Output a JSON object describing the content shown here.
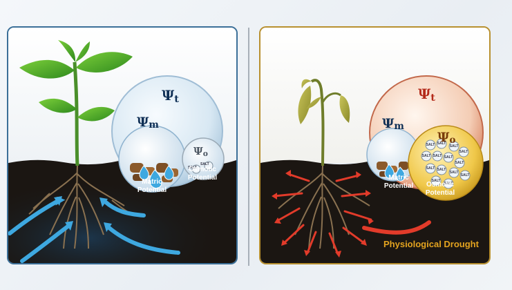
{
  "healthy": {
    "psi_t": {
      "symbol": "Ψ",
      "sub": "t"
    },
    "psi_m": {
      "symbol": "Ψ",
      "sub": "m"
    },
    "psi_o": {
      "symbol": "Ψ",
      "sub": "o"
    },
    "matric_label": "Matric Potential",
    "osmotic_label": "Osmotic Potential",
    "salt_labels": [
      "SALT",
      "SALT"
    ]
  },
  "drought": {
    "psi_t": {
      "symbol": "Ψ",
      "sub": "t"
    },
    "psi_m": {
      "symbol": "Ψ",
      "sub": "m"
    },
    "psi_o": {
      "symbol": "Ψ",
      "sub": "o"
    },
    "matric_label": "Matric Potential",
    "osmotic_label": "Osmotic Potential",
    "salt_labels": [
      "SALT",
      "SALT",
      "SALT",
      "SALT",
      "SALT",
      "SALT",
      "SALT",
      "SALT",
      "SALT",
      "SALT",
      "SALT",
      "SALT",
      "SALT",
      "SALT"
    ],
    "caption": "Physiological Drought"
  },
  "colors": {
    "healthy_border": "#3b6f98",
    "drought_border": "#b8902f",
    "water_arrow": "#3ea8e0",
    "efflux_arrow": "#e23b2a",
    "caption": "#e3a31f",
    "soil": "#1b1612"
  }
}
